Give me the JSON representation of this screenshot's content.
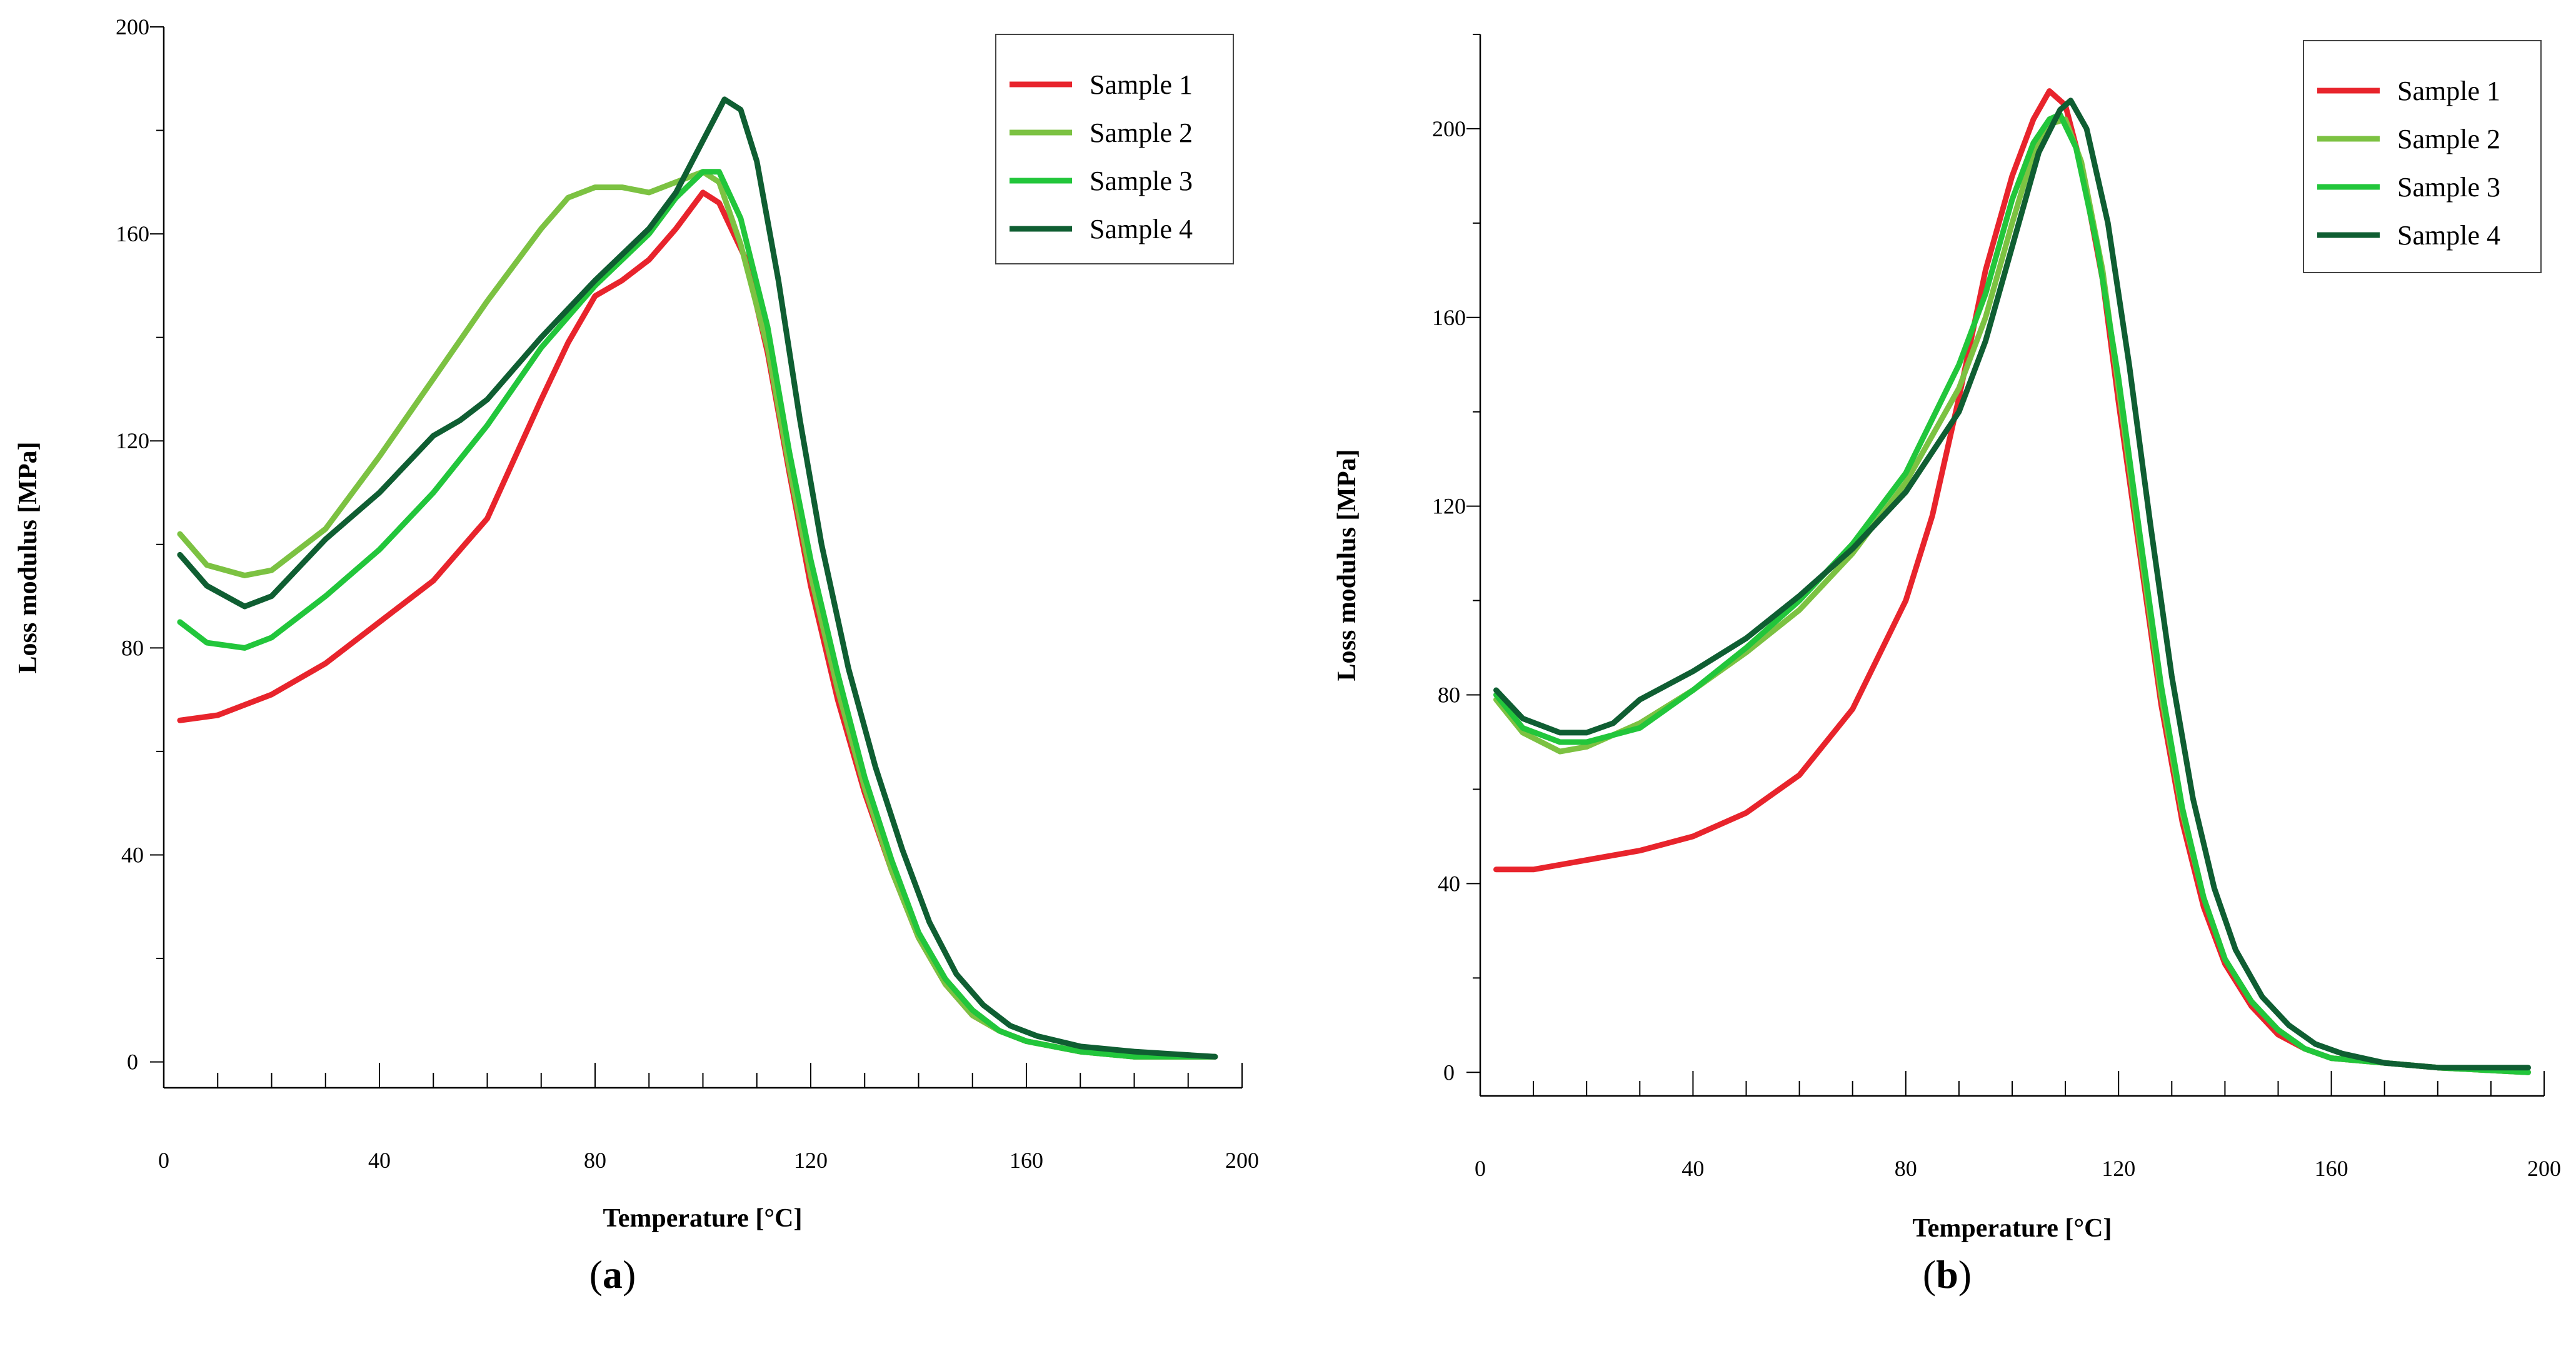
{
  "chart_data": [
    {
      "type": "line",
      "panel_label": "(a)",
      "label_letter": "a",
      "xlabel": "Temperature [°C]",
      "ylabel": "Loss modulus [MPa]",
      "xlim": [
        0,
        200
      ],
      "ylim": [
        -5,
        200
      ],
      "x_ticks": [
        0,
        40,
        80,
        120,
        160,
        200
      ],
      "y_ticks": [
        0,
        40,
        80,
        120,
        160,
        200
      ],
      "legend_position": "top-right",
      "grid": false,
      "series": [
        {
          "name": "Sample 1",
          "color": "#e8242c",
          "points": [
            [
              3,
              66
            ],
            [
              10,
              67
            ],
            [
              20,
              71
            ],
            [
              30,
              77
            ],
            [
              40,
              85
            ],
            [
              50,
              93
            ],
            [
              60,
              105
            ],
            [
              70,
              128
            ],
            [
              75,
              139
            ],
            [
              80,
              148
            ],
            [
              85,
              151
            ],
            [
              90,
              155
            ],
            [
              95,
              161
            ],
            [
              100,
              168
            ],
            [
              103,
              166
            ],
            [
              108,
              155
            ],
            [
              112,
              137
            ],
            [
              116,
              114
            ],
            [
              120,
              92
            ],
            [
              125,
              70
            ],
            [
              130,
              52
            ],
            [
              135,
              37
            ],
            [
              140,
              24
            ],
            [
              145,
              15
            ],
            [
              150,
              9
            ],
            [
              155,
              6
            ],
            [
              160,
              4
            ],
            [
              165,
              3
            ],
            [
              170,
              2
            ],
            [
              180,
              1
            ],
            [
              195,
              1
            ]
          ]
        },
        {
          "name": "Sample 2",
          "color": "#7cc242",
          "points": [
            [
              3,
              102
            ],
            [
              8,
              96
            ],
            [
              15,
              94
            ],
            [
              20,
              95
            ],
            [
              30,
              103
            ],
            [
              40,
              117
            ],
            [
              50,
              132
            ],
            [
              60,
              147
            ],
            [
              70,
              161
            ],
            [
              75,
              167
            ],
            [
              80,
              169
            ],
            [
              85,
              169
            ],
            [
              90,
              168
            ],
            [
              95,
              170
            ],
            [
              100,
              172
            ],
            [
              103,
              170
            ],
            [
              107,
              158
            ],
            [
              112,
              138
            ],
            [
              116,
              115
            ],
            [
              120,
              94
            ],
            [
              125,
              72
            ],
            [
              130,
              53
            ],
            [
              135,
              37
            ],
            [
              140,
              24
            ],
            [
              145,
              15
            ],
            [
              150,
              9
            ],
            [
              155,
              6
            ],
            [
              160,
              4
            ],
            [
              165,
              3
            ],
            [
              170,
              2
            ],
            [
              180,
              1
            ],
            [
              195,
              1
            ]
          ]
        },
        {
          "name": "Sample 3",
          "color": "#22c63b",
          "points": [
            [
              3,
              85
            ],
            [
              8,
              81
            ],
            [
              15,
              80
            ],
            [
              20,
              82
            ],
            [
              30,
              90
            ],
            [
              40,
              99
            ],
            [
              50,
              110
            ],
            [
              60,
              123
            ],
            [
              70,
              138
            ],
            [
              80,
              150
            ],
            [
              90,
              160
            ],
            [
              95,
              167
            ],
            [
              100,
              172
            ],
            [
              103,
              172
            ],
            [
              107,
              163
            ],
            [
              112,
              142
            ],
            [
              116,
              118
            ],
            [
              120,
              97
            ],
            [
              125,
              75
            ],
            [
              130,
              55
            ],
            [
              135,
              39
            ],
            [
              140,
              25
            ],
            [
              145,
              16
            ],
            [
              150,
              10
            ],
            [
              155,
              6
            ],
            [
              160,
              4
            ],
            [
              165,
              3
            ],
            [
              170,
              2
            ],
            [
              180,
              1
            ],
            [
              195,
              1
            ]
          ]
        },
        {
          "name": "Sample 4",
          "color": "#0f5e32",
          "points": [
            [
              3,
              98
            ],
            [
              8,
              92
            ],
            [
              15,
              88
            ],
            [
              20,
              90
            ],
            [
              30,
              101
            ],
            [
              40,
              110
            ],
            [
              50,
              121
            ],
            [
              55,
              124
            ],
            [
              60,
              128
            ],
            [
              70,
              140
            ],
            [
              80,
              151
            ],
            [
              90,
              161
            ],
            [
              95,
              168
            ],
            [
              100,
              178
            ],
            [
              104,
              186
            ],
            [
              107,
              184
            ],
            [
              110,
              174
            ],
            [
              114,
              151
            ],
            [
              118,
              124
            ],
            [
              122,
              100
            ],
            [
              127,
              76
            ],
            [
              132,
              57
            ],
            [
              137,
              41
            ],
            [
              142,
              27
            ],
            [
              147,
              17
            ],
            [
              152,
              11
            ],
            [
              157,
              7
            ],
            [
              162,
              5
            ],
            [
              170,
              3
            ],
            [
              180,
              2
            ],
            [
              195,
              1
            ]
          ]
        }
      ]
    },
    {
      "type": "line",
      "panel_label": "(b)",
      "label_letter": "b",
      "xlabel": "Temperature [°C]",
      "ylabel": "Loss modulus [MPa]",
      "xlim": [
        0,
        200
      ],
      "ylim": [
        -5,
        220
      ],
      "x_ticks": [
        0,
        40,
        80,
        120,
        160,
        200
      ],
      "y_ticks": [
        0,
        40,
        80,
        120,
        160,
        200
      ],
      "legend_position": "top-right",
      "grid": false,
      "series": [
        {
          "name": "Sample 1",
          "color": "#e8242c",
          "points": [
            [
              3,
              43
            ],
            [
              10,
              43
            ],
            [
              20,
              45
            ],
            [
              30,
              47
            ],
            [
              40,
              50
            ],
            [
              50,
              55
            ],
            [
              60,
              63
            ],
            [
              70,
              77
            ],
            [
              80,
              100
            ],
            [
              85,
              118
            ],
            [
              90,
              143
            ],
            [
              95,
              170
            ],
            [
              100,
              190
            ],
            [
              104,
              202
            ],
            [
              107,
              208
            ],
            [
              110,
              205
            ],
            [
              113,
              192
            ],
            [
              117,
              168
            ],
            [
              120,
              142
            ],
            [
              124,
              110
            ],
            [
              128,
              78
            ],
            [
              132,
              53
            ],
            [
              136,
              35
            ],
            [
              140,
              23
            ],
            [
              145,
              14
            ],
            [
              150,
              8
            ],
            [
              155,
              5
            ],
            [
              160,
              3
            ],
            [
              170,
              2
            ],
            [
              180,
              1
            ],
            [
              197,
              0
            ]
          ]
        },
        {
          "name": "Sample 2",
          "color": "#7cc242",
          "points": [
            [
              3,
              79
            ],
            [
              8,
              72
            ],
            [
              15,
              68
            ],
            [
              20,
              69
            ],
            [
              30,
              74
            ],
            [
              40,
              81
            ],
            [
              50,
              89
            ],
            [
              60,
              98
            ],
            [
              70,
              110
            ],
            [
              80,
              125
            ],
            [
              90,
              145
            ],
            [
              95,
              160
            ],
            [
              100,
              180
            ],
            [
              104,
              195
            ],
            [
              107,
              201
            ],
            [
              110,
              202
            ],
            [
              113,
              193
            ],
            [
              117,
              170
            ],
            [
              120,
              145
            ],
            [
              124,
              112
            ],
            [
              128,
              80
            ],
            [
              132,
              55
            ],
            [
              136,
              37
            ],
            [
              140,
              24
            ],
            [
              145,
              15
            ],
            [
              150,
              9
            ],
            [
              155,
              5
            ],
            [
              160,
              3
            ],
            [
              170,
              2
            ],
            [
              180,
              1
            ],
            [
              197,
              0
            ]
          ]
        },
        {
          "name": "Sample 3",
          "color": "#22c63b",
          "points": [
            [
              3,
              80
            ],
            [
              8,
              73
            ],
            [
              15,
              70
            ],
            [
              20,
              70
            ],
            [
              30,
              73
            ],
            [
              40,
              81
            ],
            [
              50,
              90
            ],
            [
              60,
              100
            ],
            [
              70,
              112
            ],
            [
              80,
              127
            ],
            [
              90,
              150
            ],
            [
              95,
              165
            ],
            [
              100,
              185
            ],
            [
              104,
              197
            ],
            [
              107,
              202
            ],
            [
              109,
              203
            ],
            [
              112,
              196
            ],
            [
              116,
              175
            ],
            [
              120,
              147
            ],
            [
              124,
              114
            ],
            [
              128,
              82
            ],
            [
              132,
              56
            ],
            [
              136,
              37
            ],
            [
              140,
              24
            ],
            [
              145,
              15
            ],
            [
              150,
              9
            ],
            [
              155,
              5
            ],
            [
              160,
              3
            ],
            [
              170,
              2
            ],
            [
              180,
              1
            ],
            [
              197,
              0
            ]
          ]
        },
        {
          "name": "Sample 4",
          "color": "#0f5e32",
          "points": [
            [
              3,
              81
            ],
            [
              8,
              75
            ],
            [
              15,
              72
            ],
            [
              20,
              72
            ],
            [
              25,
              74
            ],
            [
              30,
              79
            ],
            [
              40,
              85
            ],
            [
              50,
              92
            ],
            [
              60,
              101
            ],
            [
              70,
              111
            ],
            [
              80,
              123
            ],
            [
              90,
              140
            ],
            [
              95,
              155
            ],
            [
              100,
              175
            ],
            [
              105,
              195
            ],
            [
              109,
              204
            ],
            [
              111,
              206
            ],
            [
              114,
              200
            ],
            [
              118,
              180
            ],
            [
              122,
              150
            ],
            [
              126,
              116
            ],
            [
              130,
              84
            ],
            [
              134,
              58
            ],
            [
              138,
              39
            ],
            [
              142,
              26
            ],
            [
              147,
              16
            ],
            [
              152,
              10
            ],
            [
              157,
              6
            ],
            [
              162,
              4
            ],
            [
              170,
              2
            ],
            [
              180,
              1
            ],
            [
              197,
              1
            ]
          ]
        }
      ]
    }
  ]
}
